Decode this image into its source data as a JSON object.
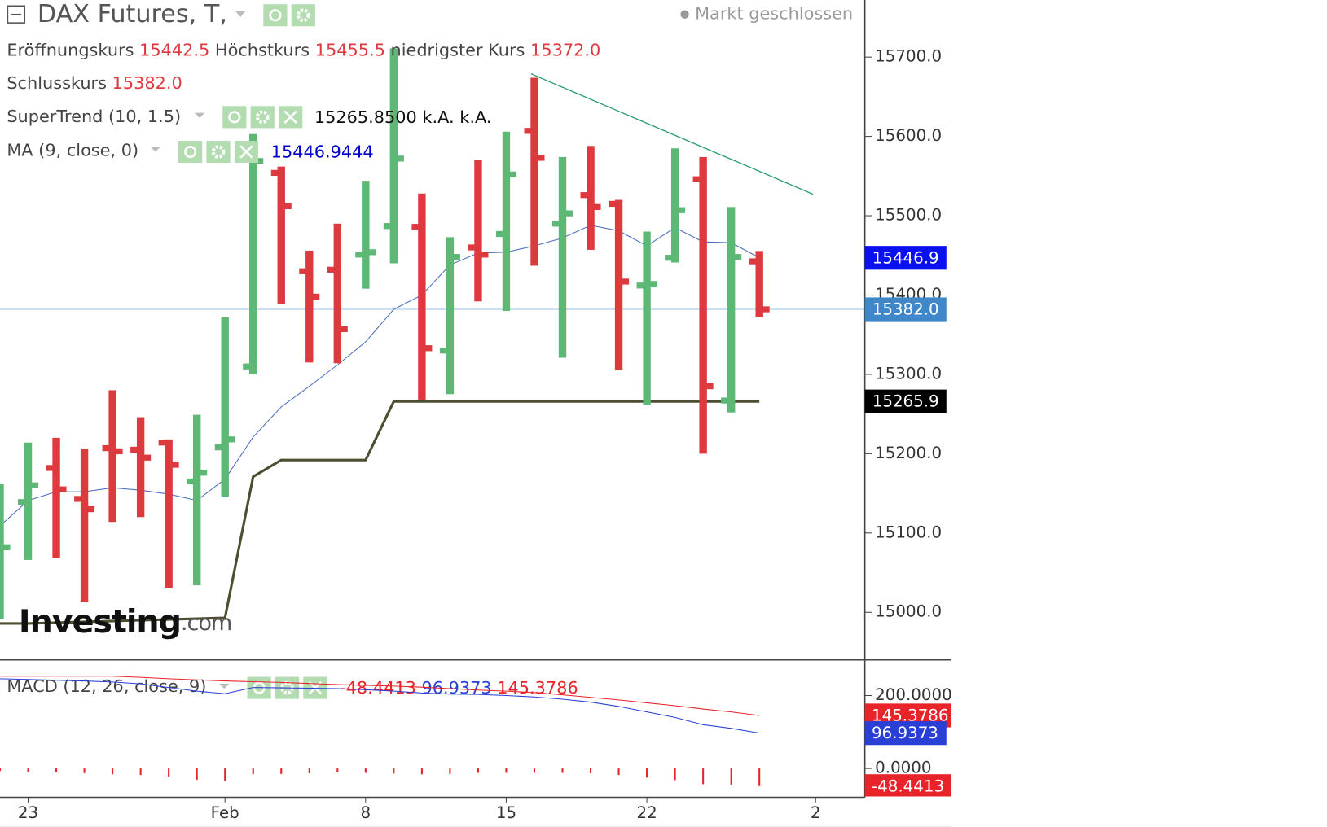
{
  "header": {
    "title": "DAX Futures, T,",
    "status": "Markt geschlossen",
    "ohlc": [
      {
        "label": "Eröffnungskurs",
        "value": "15442.5"
      },
      {
        "label": "Höchstkurs",
        "value": "15455.5"
      },
      {
        "label": "niedrigster Kurs",
        "value": "15372.0"
      },
      {
        "label": "Schlusskurs",
        "value": "15382.0"
      }
    ]
  },
  "watermark": {
    "brand": "Investing",
    "suffix": ".com"
  },
  "chart_data": [
    {
      "type": "ohlc",
      "up_color": "#5cb874",
      "down_color": "#dd3a40",
      "xlim": [
        0,
        30.75
      ],
      "ylim": [
        14940,
        15772
      ],
      "xticks": [
        {
          "value": 1,
          "label": "23"
        },
        {
          "value": 8,
          "label": "Feb"
        },
        {
          "value": 13,
          "label": "8"
        },
        {
          "value": 18,
          "label": "15"
        },
        {
          "value": 23,
          "label": "22"
        },
        {
          "value": 29,
          "label": "2"
        }
      ],
      "yticks": [
        {
          "value": 15000,
          "label": "15000.0"
        },
        {
          "value": 15100,
          "label": "15100.0"
        },
        {
          "value": 15200,
          "label": "15200.0"
        },
        {
          "value": 15300,
          "label": "15300.0"
        },
        {
          "value": 15400,
          "label": "15400.0"
        },
        {
          "value": 15500,
          "label": "15500.0"
        },
        {
          "value": 15600,
          "label": "15600.0"
        },
        {
          "value": 15700,
          "label": "15700.0"
        }
      ],
      "open": [
        15040,
        15139,
        15182,
        15143,
        15207,
        15205,
        15214,
        15165,
        15208,
        15310,
        15554,
        15430,
        15432,
        15451,
        15487,
        15486,
        15330,
        15460,
        15477,
        15607,
        15490,
        15526,
        15515,
        15412,
        15447,
        15546,
        15267,
        15442.5
      ],
      "high": [
        15162,
        15214,
        15220,
        15206,
        15280,
        15246,
        15218,
        15249,
        15372,
        15603,
        15562,
        15456,
        15490,
        15544,
        15711,
        15528,
        15473,
        15570,
        15606,
        15674,
        15574,
        15588,
        15520,
        15480,
        15585,
        15574,
        15511,
        15455.5
      ],
      "low": [
        14992,
        15066,
        15068,
        15013,
        15114,
        15120,
        15031,
        15034,
        15146,
        15300,
        15389,
        15315,
        15314,
        15408,
        15440,
        15268,
        15275,
        15392,
        15380,
        15437,
        15321,
        15457,
        15305,
        15262,
        15441,
        15200,
        15252,
        15372
      ],
      "close": [
        15082,
        15160,
        15155,
        15130,
        15203,
        15195,
        15186,
        15176,
        15218,
        15569,
        15512,
        15398,
        15357,
        15454,
        15572,
        15333,
        15448,
        15451,
        15552,
        15573,
        15503,
        15511,
        15417,
        15414,
        15507,
        15285,
        15448,
        15382
      ],
      "indicators": [
        {
          "name": "SuperTrend (10, 1.5)",
          "color": "#4d4d30",
          "width": 3,
          "value_label": "15265.8500",
          "extra": [
            "k.A.",
            "k.A."
          ],
          "values": [
            14986,
            14986,
            14987,
            14988,
            14989,
            14990,
            14991,
            14992,
            14993,
            15171,
            15192,
            15192,
            15192,
            15192,
            15265.85,
            15265.85,
            15265.85,
            15265.85,
            15265.85,
            15265.85,
            15265.85,
            15265.85,
            15265.85,
            15265.85,
            15265.85,
            15265.85,
            15265.85,
            15265.85
          ]
        },
        {
          "name": "MA (9, close, 0)",
          "color": "#4a6fbd",
          "width": 1,
          "value_color": "#0000cc",
          "values": [
            15109,
            15141,
            15152,
            15152,
            15157,
            15154,
            15149,
            15141,
            15168,
            15221,
            15259,
            15285,
            15312,
            15341,
            15382,
            15400,
            15438,
            15453,
            15454,
            15462,
            15472,
            15488,
            15481,
            15462,
            15485,
            15467,
            15466,
            15446.9444
          ]
        }
      ],
      "badges": [
        {
          "value": 15446.9444,
          "label": "15446.9",
          "color": "#0a10f0"
        },
        {
          "value": 15382,
          "label": "15382.0",
          "color": "#3f87c8"
        },
        {
          "value": 15265.85,
          "label": "15265.9",
          "color": "#000000"
        }
      ]
    },
    {
      "type": "macd",
      "name": "MACD (12, 26, close, 9)",
      "ylim": [
        -79.1,
        297.7
      ],
      "yticks": [
        {
          "value": 0,
          "label": "0.0000"
        },
        {
          "value": 200,
          "label": "200.0000"
        }
      ],
      "histogram": {
        "color": "#e8232a",
        "values": [
          -7,
          -9,
          -11,
          -13,
          -16,
          -18,
          -24,
          -31,
          -35,
          -16,
          -15,
          -13,
          -11,
          -12,
          -14,
          -16,
          -15,
          -12,
          -12,
          -12,
          -12,
          -13,
          -18,
          -25,
          -32,
          -43,
          -45,
          -48.4413
        ]
      },
      "macd": {
        "color": "#2a3fd6",
        "values": [
          246,
          244,
          242,
          240,
          237,
          232,
          222,
          212,
          205,
          222,
          221,
          220,
          219,
          216,
          212,
          207,
          204,
          203,
          200,
          196,
          190,
          182,
          170,
          155,
          140,
          120,
          110,
          96.9373
        ]
      },
      "signal": {
        "color": "#e8232a",
        "values": [
          253,
          253,
          253,
          253,
          253,
          250,
          246,
          243,
          240,
          238,
          236,
          233,
          230,
          228,
          226,
          223,
          219,
          215,
          212,
          208,
          202,
          195,
          188,
          180,
          172,
          163,
          155,
          145.3786
        ]
      }
    }
  ]
}
